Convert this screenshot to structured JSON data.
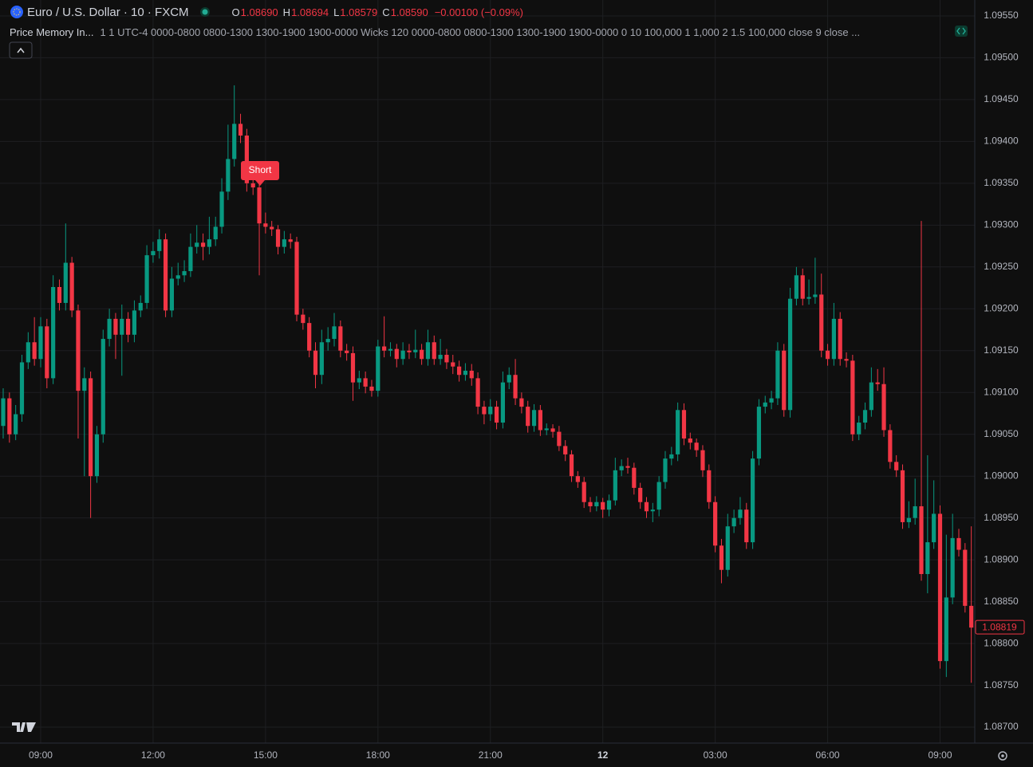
{
  "header": {
    "symbol": "Euro / U.S. Dollar · 10 · FXCM",
    "ohlc": [
      {
        "key": "O",
        "value": "1.08690"
      },
      {
        "key": "H",
        "value": "1.08694"
      },
      {
        "key": "L",
        "value": "1.08579"
      },
      {
        "key": "C",
        "value": "1.08590"
      }
    ],
    "change": "−0.00100 (−0.09%)"
  },
  "indicator": {
    "name": "Price Memory In...",
    "params": "1 1 UTC-4 0000-0800 0800-1300 1300-1900 1900-0000 Wicks 120 0000-0800 0800-1300 1300-1900 1900-0000 0 10 100,000 1 1,000 2 1.5 100,000 close 9 close ..."
  },
  "chart_data": {
    "type": "candlestick",
    "up_color": "#089981",
    "down_color": "#f23645",
    "grid": true,
    "annotations": [
      "Short"
    ],
    "last_price_label": "1.08819",
    "ylim": [
      1.08681,
      1.09569
    ],
    "yticks": [
      {
        "value": 1.087,
        "label": "1.08700"
      },
      {
        "value": 1.0875,
        "label": "1.08750"
      },
      {
        "value": 1.088,
        "label": "1.08800"
      },
      {
        "value": 1.0885,
        "label": "1.08850"
      },
      {
        "value": 1.089,
        "label": "1.08900"
      },
      {
        "value": 1.0895,
        "label": "1.08950"
      },
      {
        "value": 1.09,
        "label": "1.09000"
      },
      {
        "value": 1.0905,
        "label": "1.09050"
      },
      {
        "value": 1.091,
        "label": "1.09100"
      },
      {
        "value": 1.0915,
        "label": "1.09150"
      },
      {
        "value": 1.092,
        "label": "1.09200"
      },
      {
        "value": 1.0925,
        "label": "1.09250"
      },
      {
        "value": 1.093,
        "label": "1.09300"
      },
      {
        "value": 1.0935,
        "label": "1.09350"
      },
      {
        "value": 1.094,
        "label": "1.09400"
      },
      {
        "value": 1.0945,
        "label": "1.09450"
      },
      {
        "value": 1.095,
        "label": "1.09500"
      },
      {
        "value": 1.0955,
        "label": "1.09550"
      }
    ],
    "categories": [
      null,
      null,
      null,
      null,
      null,
      null,
      "09:00",
      null,
      null,
      null,
      null,
      null,
      null,
      null,
      null,
      null,
      null,
      null,
      null,
      null,
      null,
      null,
      null,
      null,
      "12:00",
      null,
      null,
      null,
      null,
      null,
      null,
      null,
      null,
      null,
      null,
      null,
      null,
      null,
      null,
      null,
      null,
      null,
      "15:00",
      null,
      null,
      null,
      null,
      null,
      null,
      null,
      null,
      null,
      null,
      null,
      null,
      null,
      null,
      null,
      null,
      null,
      "18:00",
      null,
      null,
      null,
      null,
      null,
      null,
      null,
      null,
      null,
      null,
      null,
      null,
      null,
      null,
      null,
      null,
      null,
      "21:00",
      null,
      null,
      null,
      null,
      null,
      null,
      null,
      null,
      null,
      null,
      null,
      null,
      null,
      null,
      null,
      null,
      null,
      "12",
      null,
      null,
      null,
      null,
      null,
      null,
      null,
      null,
      null,
      null,
      null,
      null,
      null,
      null,
      null,
      null,
      null,
      "03:00",
      null,
      null,
      null,
      null,
      null,
      null,
      null,
      null,
      null,
      null,
      null,
      null,
      null,
      null,
      null,
      null,
      null,
      "06:00",
      null,
      null,
      null,
      null,
      null,
      null,
      null,
      null,
      null,
      null,
      null,
      null,
      null,
      null,
      null,
      null,
      null,
      "09:00",
      null,
      null,
      null,
      null,
      null
    ],
    "open": [
      1.0906,
      1.09093,
      1.0905,
      1.09074,
      1.09136,
      1.0916,
      1.0914,
      1.09179,
      1.09117,
      1.09226,
      1.09207,
      1.09255,
      1.09198,
      1.09102,
      1.09117,
      1.09,
      1.0905,
      1.09164,
      1.09188,
      1.09169,
      1.09188,
      1.09169,
      1.09198,
      1.09207,
      1.09264,
      1.09269,
      1.09283,
      1.09198,
      1.09236,
      1.0924,
      1.09245,
      1.09274,
      1.09279,
      1.09274,
      1.09283,
      1.09298,
      1.0934,
      1.09379,
      1.09421,
      1.09407,
      1.0935,
      1.09345,
      1.09302,
      1.09298,
      1.09295,
      1.09274,
      1.09283,
      1.0928,
      1.09193,
      1.09183,
      1.0915,
      1.09121,
      1.0916,
      1.09164,
      1.09179,
      1.0915,
      1.09147,
      1.09112,
      1.09117,
      1.09107,
      1.09102,
      1.09155,
      1.0915,
      1.09152,
      1.0914,
      1.0915,
      1.09148,
      1.09151,
      1.0914,
      1.0916,
      1.0914,
      1.09145,
      1.09136,
      1.09131,
      1.09121,
      1.09126,
      1.09117,
      1.09083,
      1.09074,
      1.09083,
      1.09064,
      1.09112,
      1.09121,
      1.09093,
      1.09083,
      1.0906,
      1.09079,
      1.09055,
      1.09057,
      1.09053,
      1.09036,
      1.09026,
      1.09,
      1.08993,
      1.08969,
      1.08964,
      1.08969,
      1.0896,
      1.08971,
      1.09007,
      1.09012,
      1.0901,
      1.08986,
      1.08969,
      1.08958,
      1.0896,
      1.08993,
      1.09021,
      1.09026,
      1.09079,
      1.09045,
      1.0904,
      1.09031,
      1.09007,
      1.08969,
      1.08917,
      1.08888,
      1.0894,
      1.0895,
      1.0896,
      1.08921,
      1.09021,
      1.09083,
      1.09088,
      1.09093,
      1.0915,
      1.09079,
      1.09212,
      1.0924,
      1.09212,
      1.09214,
      1.09217,
      1.0915,
      1.0914,
      1.09188,
      1.0914,
      1.09138,
      1.0905,
      1.09064,
      1.09079,
      1.09112,
      1.0911,
      1.09055,
      1.09017,
      1.09007,
      1.08945,
      1.0895,
      1.08964,
      1.08883,
      1.08921,
      1.08955,
      1.08779,
      1.08855,
      1.08926,
      1.08912,
      1.08845
    ],
    "high": [
      1.09105,
      1.091,
      1.09085,
      1.09145,
      1.09172,
      1.0919,
      1.0919,
      1.09188,
      1.0924,
      1.09235,
      1.09302,
      1.09262,
      1.09205,
      1.0913,
      1.09125,
      1.0906,
      1.09175,
      1.092,
      1.09195,
      1.09205,
      1.09196,
      1.0921,
      1.09216,
      1.09276,
      1.0928,
      1.09295,
      1.0929,
      1.0925,
      1.09255,
      1.09258,
      1.0929,
      1.093,
      1.0929,
      1.0931,
      1.0931,
      1.09356,
      1.0942,
      1.09467,
      1.09433,
      1.09415,
      1.0936,
      1.09355,
      1.09315,
      1.09305,
      1.093,
      1.09293,
      1.0929,
      1.09286,
      1.092,
      1.0919,
      1.0916,
      1.09175,
      1.09178,
      1.09195,
      1.09186,
      1.09158,
      1.09155,
      1.09126,
      1.09125,
      1.09115,
      1.09163,
      1.09191,
      1.0916,
      1.09158,
      1.0916,
      1.09158,
      1.09175,
      1.09158,
      1.09175,
      1.09168,
      1.09164,
      1.09152,
      1.09145,
      1.09138,
      1.09135,
      1.09134,
      1.09124,
      1.0909,
      1.09092,
      1.0909,
      1.09125,
      1.0913,
      1.0914,
      1.091,
      1.0909,
      1.09086,
      1.09085,
      1.09063,
      1.09062,
      1.0906,
      1.09043,
      1.09031,
      1.09006,
      1.08999,
      1.08975,
      1.08976,
      1.08974,
      1.08978,
      1.09022,
      1.0902,
      1.09022,
      1.09016,
      1.08992,
      1.08975,
      1.08968,
      1.09,
      1.0903,
      1.09035,
      1.09088,
      1.09087,
      1.09052,
      1.09045,
      1.09037,
      1.09014,
      1.08976,
      1.08925,
      1.08955,
      1.0896,
      1.08975,
      1.08968,
      1.0903,
      1.09092,
      1.09096,
      1.09102,
      1.0916,
      1.09158,
      1.09225,
      1.0925,
      1.09248,
      1.09235,
      1.09261,
      1.09242,
      1.09158,
      1.09207,
      1.09196,
      1.09148,
      1.09145,
      1.09072,
      1.09088,
      1.0913,
      1.09128,
      1.0913,
      1.09062,
      1.09025,
      1.09014,
      1.0897,
      1.08997,
      1.09305,
      1.09025,
      1.08995,
      1.08965,
      1.0893,
      1.08955,
      1.08937,
      1.0892,
      1.0894
    ],
    "low": [
      1.09045,
      1.0904,
      1.09043,
      1.09065,
      1.09128,
      1.09132,
      1.0913,
      1.09105,
      1.0911,
      1.09198,
      1.09198,
      1.0919,
      1.09045,
      1.09,
      1.0895,
      1.08992,
      1.0904,
      1.09155,
      1.0914,
      1.0912,
      1.0916,
      1.0916,
      1.0919,
      1.092,
      1.09255,
      1.0926,
      1.0919,
      1.0919,
      1.09228,
      1.09232,
      1.09238,
      1.09266,
      1.09258,
      1.09265,
      1.09275,
      1.0929,
      1.0933,
      1.0937,
      1.09398,
      1.0934,
      1.09336,
      1.0924,
      1.0929,
      1.09287,
      1.09265,
      1.09266,
      1.09272,
      1.09185,
      1.09175,
      1.09142,
      1.09105,
      1.0911,
      1.0915,
      1.09155,
      1.09142,
      1.09138,
      1.0909,
      1.09104,
      1.09099,
      1.09095,
      1.09095,
      1.09142,
      1.09143,
      1.0913,
      1.09133,
      1.0914,
      1.09141,
      1.09133,
      1.09132,
      1.09133,
      1.09133,
      1.09128,
      1.09122,
      1.09113,
      1.09114,
      1.09108,
      1.09074,
      1.09062,
      1.09066,
      1.09056,
      1.09057,
      1.09104,
      1.09085,
      1.09075,
      1.09052,
      1.09053,
      1.09048,
      1.09049,
      1.09046,
      1.0903,
      1.09018,
      1.08993,
      1.08986,
      1.08962,
      1.08957,
      1.08958,
      1.0895,
      1.08952,
      1.08965,
      1.09,
      1.09003,
      1.08978,
      1.08961,
      1.0895,
      1.08945,
      1.08952,
      1.08985,
      1.09013,
      1.09018,
      1.09037,
      1.09032,
      1.09023,
      1.08999,
      1.08961,
      1.08909,
      1.08872,
      1.0888,
      1.08932,
      1.08942,
      1.08913,
      1.08913,
      1.09013,
      1.09075,
      1.0908,
      1.09085,
      1.09071,
      1.0907,
      1.09204,
      1.09204,
      1.09205,
      1.09206,
      1.09142,
      1.09132,
      1.09132,
      1.09132,
      1.0913,
      1.09042,
      1.09043,
      1.09056,
      1.09071,
      1.09102,
      1.09047,
      1.09009,
      1.08999,
      1.08937,
      1.08938,
      1.08942,
      1.08875,
      1.0886,
      1.08913,
      1.0877,
      1.0876,
      1.08847,
      1.08904,
      1.08837,
      1.08753
    ],
    "close": [
      1.09093,
      1.0905,
      1.09074,
      1.09136,
      1.0916,
      1.0914,
      1.09179,
      1.09117,
      1.09226,
      1.09207,
      1.09255,
      1.09198,
      1.09102,
      1.09117,
      1.09,
      1.0905,
      1.09164,
      1.09188,
      1.09169,
      1.09188,
      1.09169,
      1.09198,
      1.09207,
      1.09264,
      1.09269,
      1.09283,
      1.09198,
      1.09236,
      1.0924,
      1.09245,
      1.09274,
      1.09279,
      1.09274,
      1.09283,
      1.09298,
      1.0934,
      1.09379,
      1.09421,
      1.09407,
      1.0935,
      1.09345,
      1.09302,
      1.09298,
      1.09295,
      1.09274,
      1.09283,
      1.0928,
      1.09193,
      1.09183,
      1.0915,
      1.09121,
      1.0916,
      1.09164,
      1.09179,
      1.0915,
      1.09147,
      1.09112,
      1.09117,
      1.09107,
      1.09102,
      1.09155,
      1.0915,
      1.09152,
      1.0914,
      1.0915,
      1.09148,
      1.09151,
      1.0914,
      1.0916,
      1.0914,
      1.09145,
      1.09136,
      1.09131,
      1.09121,
      1.09126,
      1.09117,
      1.09083,
      1.09074,
      1.09083,
      1.09064,
      1.09112,
      1.09121,
      1.09093,
      1.09083,
      1.0906,
      1.09079,
      1.09055,
      1.09057,
      1.09053,
      1.09036,
      1.09026,
      1.09,
      1.08993,
      1.08969,
      1.08964,
      1.08969,
      1.0896,
      1.08971,
      1.09007,
      1.09012,
      1.0901,
      1.08986,
      1.08969,
      1.08958,
      1.0896,
      1.08993,
      1.09021,
      1.09026,
      1.09079,
      1.09045,
      1.0904,
      1.09031,
      1.09007,
      1.08969,
      1.08917,
      1.08888,
      1.0894,
      1.0895,
      1.0896,
      1.08921,
      1.09021,
      1.09083,
      1.09088,
      1.09093,
      1.0915,
      1.09079,
      1.09212,
      1.0924,
      1.09212,
      1.09214,
      1.09217,
      1.0915,
      1.0914,
      1.09188,
      1.0914,
      1.09138,
      1.0905,
      1.09064,
      1.09079,
      1.09112,
      1.0911,
      1.09055,
      1.09017,
      1.09007,
      1.08945,
      1.0895,
      1.08964,
      1.08883,
      1.08921,
      1.08955,
      1.08779,
      1.08855,
      1.08926,
      1.08912,
      1.08845,
      1.08819
    ]
  }
}
